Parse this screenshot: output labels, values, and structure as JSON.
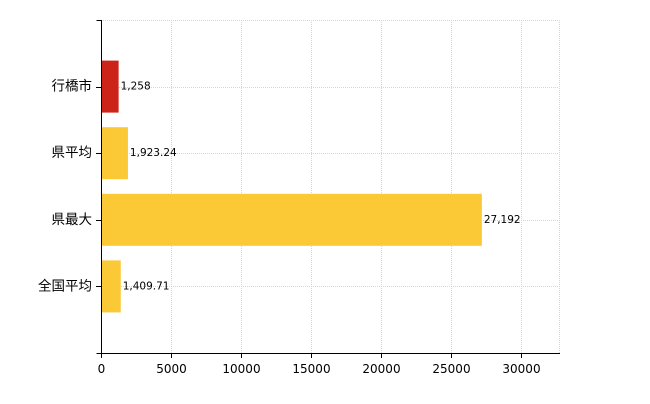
{
  "chart_data": {
    "type": "bar",
    "orientation": "horizontal",
    "categories": [
      "行橋市",
      "県平均",
      "県最大",
      "全国平均"
    ],
    "values": [
      1258,
      1923.24,
      27192,
      1409.71
    ],
    "data_labels": [
      "1,258",
      "1,923.24",
      "27,192",
      "1,409.71"
    ],
    "bar_colors": [
      "#cc2418",
      "#fbc935",
      "#fbc935",
      "#fbc935"
    ],
    "x_ticks": [
      0,
      5000,
      10000,
      15000,
      20000,
      25000,
      30000
    ],
    "tick_labels": [
      "0",
      "5000",
      "10000",
      "15000",
      "20000",
      "25000",
      "30000"
    ],
    "xlim": [
      0,
      32700
    ],
    "grid": true,
    "title": "",
    "xlabel": "",
    "ylabel": ""
  }
}
